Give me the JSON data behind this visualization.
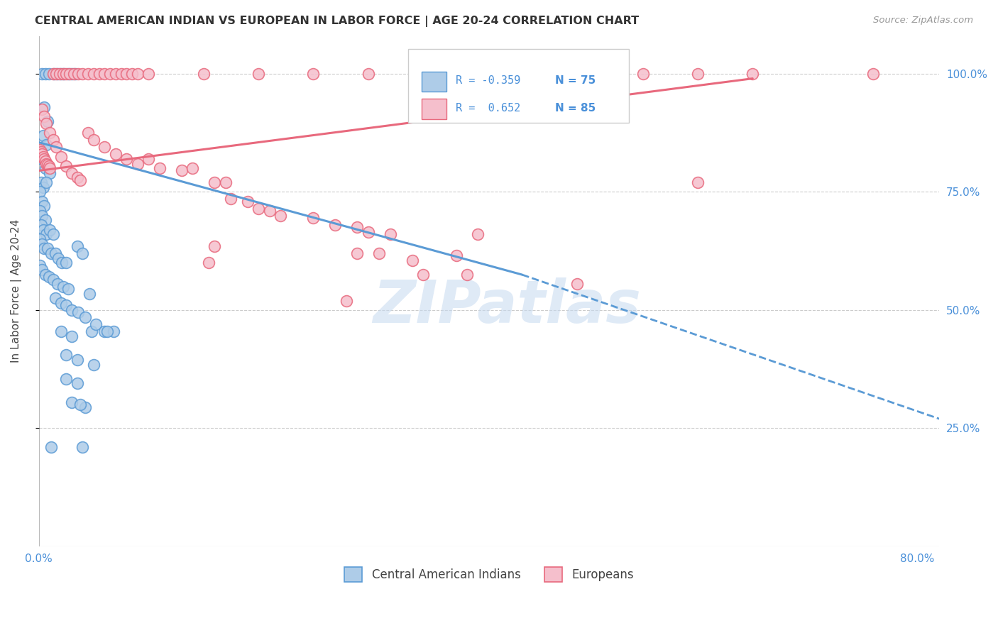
{
  "title": "CENTRAL AMERICAN INDIAN VS EUROPEAN IN LABOR FORCE | AGE 20-24 CORRELATION CHART",
  "source": "Source: ZipAtlas.com",
  "ylabel": "In Labor Force | Age 20-24",
  "xlim": [
    0.0,
    0.82
  ],
  "ylim": [
    0.0,
    1.08
  ],
  "x_ticks": [
    0.0,
    0.1,
    0.2,
    0.3,
    0.4,
    0.5,
    0.6,
    0.7,
    0.8
  ],
  "x_tick_labels": [
    "0.0%",
    "",
    "",
    "",
    "",
    "",
    "",
    "",
    "80.0%"
  ],
  "y_ticks": [
    0.25,
    0.5,
    0.75,
    1.0
  ],
  "y_tick_labels": [
    "25.0%",
    "50.0%",
    "75.0%",
    "100.0%"
  ],
  "r_blue": -0.359,
  "n_blue": 75,
  "r_pink": 0.652,
  "n_pink": 85,
  "blue_color": "#aecce8",
  "pink_color": "#f5bfcc",
  "blue_line_color": "#5b9bd5",
  "pink_line_color": "#e8697d",
  "blue_line_solid": [
    [
      0.0,
      0.855
    ],
    [
      0.44,
      0.575
    ]
  ],
  "blue_line_dashed": [
    [
      0.44,
      0.575
    ],
    [
      0.82,
      0.27
    ]
  ],
  "pink_line_solid": [
    [
      0.0,
      0.795
    ],
    [
      0.65,
      0.99
    ]
  ],
  "watermark_text": "ZIPatlas",
  "watermark_color": "#c5d9f0",
  "legend_entries": [
    "Central American Indians",
    "Europeans"
  ],
  "blue_scatter": [
    [
      0.003,
      1.0
    ],
    [
      0.006,
      1.0
    ],
    [
      0.009,
      1.0
    ],
    [
      0.014,
      1.0
    ],
    [
      0.017,
      1.0
    ],
    [
      0.02,
      1.0
    ],
    [
      0.023,
      1.0
    ],
    [
      0.027,
      1.0
    ],
    [
      0.03,
      1.0
    ],
    [
      0.033,
      1.0
    ],
    [
      0.005,
      0.93
    ],
    [
      0.008,
      0.9
    ],
    [
      0.004,
      0.87
    ],
    [
      0.007,
      0.85
    ],
    [
      0.003,
      0.82
    ],
    [
      0.006,
      0.8
    ],
    [
      0.01,
      0.79
    ],
    [
      0.002,
      0.77
    ],
    [
      0.004,
      0.76
    ],
    [
      0.007,
      0.77
    ],
    [
      0.001,
      0.75
    ],
    [
      0.003,
      0.73
    ],
    [
      0.005,
      0.72
    ],
    [
      0.001,
      0.71
    ],
    [
      0.003,
      0.7
    ],
    [
      0.006,
      0.69
    ],
    [
      0.002,
      0.68
    ],
    [
      0.004,
      0.67
    ],
    [
      0.007,
      0.66
    ],
    [
      0.01,
      0.67
    ],
    [
      0.013,
      0.66
    ],
    [
      0.001,
      0.65
    ],
    [
      0.003,
      0.64
    ],
    [
      0.005,
      0.63
    ],
    [
      0.008,
      0.63
    ],
    [
      0.011,
      0.62
    ],
    [
      0.015,
      0.62
    ],
    [
      0.018,
      0.61
    ],
    [
      0.021,
      0.6
    ],
    [
      0.025,
      0.6
    ],
    [
      0.001,
      0.595
    ],
    [
      0.003,
      0.585
    ],
    [
      0.006,
      0.575
    ],
    [
      0.009,
      0.57
    ],
    [
      0.013,
      0.565
    ],
    [
      0.017,
      0.555
    ],
    [
      0.022,
      0.55
    ],
    [
      0.027,
      0.545
    ],
    [
      0.035,
      0.635
    ],
    [
      0.04,
      0.62
    ],
    [
      0.015,
      0.525
    ],
    [
      0.02,
      0.515
    ],
    [
      0.025,
      0.51
    ],
    [
      0.03,
      0.5
    ],
    [
      0.036,
      0.495
    ],
    [
      0.042,
      0.485
    ],
    [
      0.02,
      0.455
    ],
    [
      0.03,
      0.445
    ],
    [
      0.048,
      0.455
    ],
    [
      0.025,
      0.405
    ],
    [
      0.035,
      0.395
    ],
    [
      0.05,
      0.385
    ],
    [
      0.025,
      0.355
    ],
    [
      0.035,
      0.345
    ],
    [
      0.03,
      0.305
    ],
    [
      0.042,
      0.295
    ],
    [
      0.038,
      0.3
    ],
    [
      0.052,
      0.47
    ],
    [
      0.011,
      0.21
    ],
    [
      0.04,
      0.21
    ],
    [
      0.06,
      0.455
    ],
    [
      0.068,
      0.455
    ],
    [
      0.046,
      0.535
    ],
    [
      0.062,
      0.455
    ]
  ],
  "pink_scatter": [
    [
      0.001,
      0.84
    ],
    [
      0.002,
      0.835
    ],
    [
      0.003,
      0.83
    ],
    [
      0.004,
      0.825
    ],
    [
      0.005,
      0.82
    ],
    [
      0.006,
      0.815
    ],
    [
      0.007,
      0.81
    ],
    [
      0.008,
      0.808
    ],
    [
      0.009,
      0.805
    ],
    [
      0.01,
      0.8
    ],
    [
      0.003,
      0.925
    ],
    [
      0.005,
      0.91
    ],
    [
      0.007,
      0.895
    ],
    [
      0.01,
      0.875
    ],
    [
      0.013,
      0.86
    ],
    [
      0.016,
      0.845
    ],
    [
      0.02,
      0.825
    ],
    [
      0.025,
      0.805
    ],
    [
      0.03,
      0.79
    ],
    [
      0.035,
      0.78
    ],
    [
      0.038,
      0.775
    ],
    [
      0.013,
      1.0
    ],
    [
      0.016,
      1.0
    ],
    [
      0.019,
      1.0
    ],
    [
      0.022,
      1.0
    ],
    [
      0.025,
      1.0
    ],
    [
      0.028,
      1.0
    ],
    [
      0.032,
      1.0
    ],
    [
      0.036,
      1.0
    ],
    [
      0.04,
      1.0
    ],
    [
      0.045,
      1.0
    ],
    [
      0.05,
      1.0
    ],
    [
      0.055,
      1.0
    ],
    [
      0.06,
      1.0
    ],
    [
      0.065,
      1.0
    ],
    [
      0.07,
      1.0
    ],
    [
      0.075,
      1.0
    ],
    [
      0.08,
      1.0
    ],
    [
      0.085,
      1.0
    ],
    [
      0.09,
      1.0
    ],
    [
      0.1,
      1.0
    ],
    [
      0.15,
      1.0
    ],
    [
      0.2,
      1.0
    ],
    [
      0.25,
      1.0
    ],
    [
      0.3,
      1.0
    ],
    [
      0.35,
      1.0
    ],
    [
      0.4,
      1.0
    ],
    [
      0.45,
      1.0
    ],
    [
      0.5,
      1.0
    ],
    [
      0.55,
      1.0
    ],
    [
      0.6,
      1.0
    ],
    [
      0.65,
      1.0
    ],
    [
      0.76,
      1.0
    ],
    [
      0.045,
      0.875
    ],
    [
      0.05,
      0.86
    ],
    [
      0.06,
      0.845
    ],
    [
      0.07,
      0.83
    ],
    [
      0.08,
      0.82
    ],
    [
      0.09,
      0.81
    ],
    [
      0.1,
      0.82
    ],
    [
      0.11,
      0.8
    ],
    [
      0.13,
      0.795
    ],
    [
      0.14,
      0.8
    ],
    [
      0.16,
      0.77
    ],
    [
      0.17,
      0.77
    ],
    [
      0.175,
      0.735
    ],
    [
      0.19,
      0.73
    ],
    [
      0.2,
      0.715
    ],
    [
      0.21,
      0.71
    ],
    [
      0.22,
      0.7
    ],
    [
      0.25,
      0.695
    ],
    [
      0.27,
      0.68
    ],
    [
      0.29,
      0.675
    ],
    [
      0.3,
      0.665
    ],
    [
      0.32,
      0.66
    ],
    [
      0.29,
      0.62
    ],
    [
      0.38,
      0.615
    ],
    [
      0.35,
      0.575
    ],
    [
      0.39,
      0.575
    ],
    [
      0.4,
      0.66
    ],
    [
      0.49,
      0.555
    ],
    [
      0.28,
      0.52
    ],
    [
      0.31,
      0.62
    ],
    [
      0.34,
      0.605
    ],
    [
      0.16,
      0.635
    ],
    [
      0.155,
      0.6
    ],
    [
      0.6,
      0.77
    ]
  ]
}
